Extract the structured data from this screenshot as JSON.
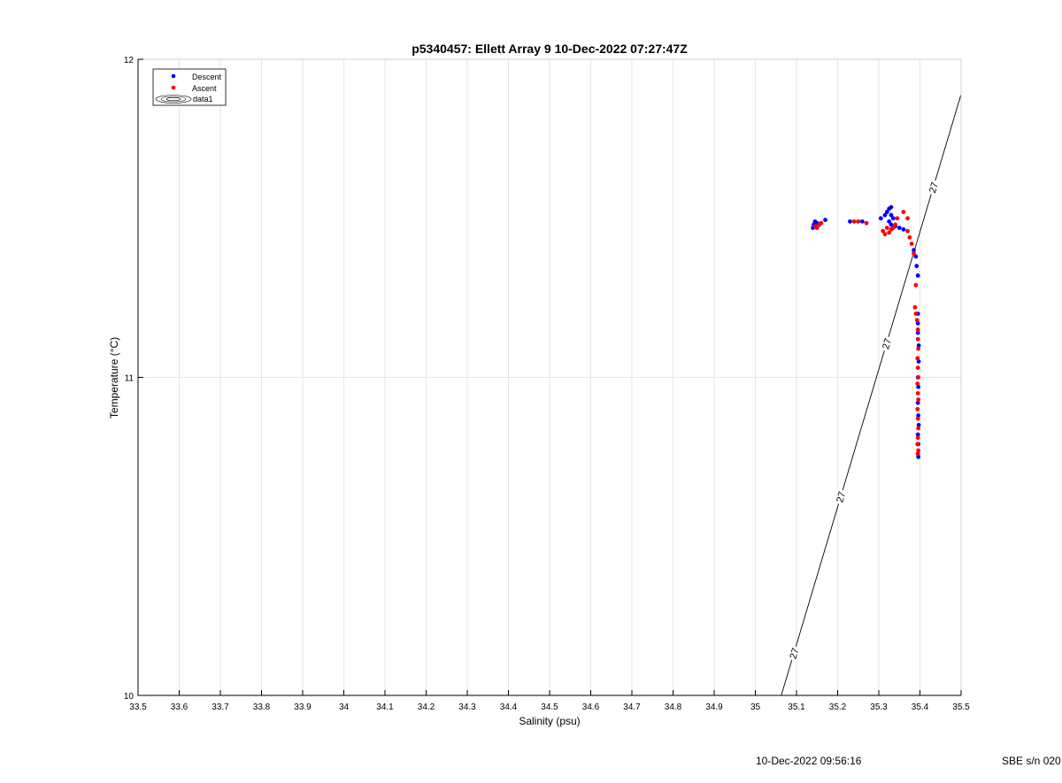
{
  "chart_data": {
    "type": "scatter",
    "title": "p5340457: Ellett Array 9 10-Dec-2022 07:27:47Z",
    "xlabel": "Salinity (psu)",
    "ylabel": "Temperature (°C)",
    "xlim": [
      33.5,
      35.5
    ],
    "ylim": [
      10,
      12
    ],
    "xticks": [
      "33.5",
      "33.6",
      "33.7",
      "33.8",
      "33.9",
      "34",
      "34.1",
      "34.2",
      "34.3",
      "34.4",
      "34.5",
      "34.6",
      "34.7",
      "34.8",
      "34.9",
      "35",
      "35.1",
      "35.2",
      "35.3",
      "35.4",
      "35.5"
    ],
    "yticks": [
      "10",
      "11",
      "12"
    ],
    "grid": true,
    "legend": {
      "placement": "top-left",
      "entries": [
        "Descent",
        "Ascent",
        "data1"
      ]
    },
    "contour": {
      "label": "27",
      "points": [
        [
          35.063,
          10.0
        ],
        [
          35.5,
          11.89
        ]
      ]
    },
    "series": [
      {
        "name": "Descent",
        "color": "#0000ff",
        "points": [
          [
            35.14,
            11.47
          ],
          [
            35.142,
            11.48
          ],
          [
            35.145,
            11.49
          ],
          [
            35.15,
            11.485
          ],
          [
            35.155,
            11.48
          ],
          [
            35.17,
            11.495
          ],
          [
            35.23,
            11.49
          ],
          [
            35.26,
            11.49
          ],
          [
            35.305,
            11.5
          ],
          [
            35.315,
            11.51
          ],
          [
            35.32,
            11.52
          ],
          [
            35.325,
            11.53
          ],
          [
            35.33,
            11.535
          ],
          [
            35.33,
            11.51
          ],
          [
            35.325,
            11.49
          ],
          [
            35.33,
            11.48
          ],
          [
            35.335,
            11.5
          ],
          [
            35.34,
            11.475
          ],
          [
            35.35,
            11.47
          ],
          [
            35.36,
            11.465
          ],
          [
            35.385,
            11.4
          ],
          [
            35.39,
            11.38
          ],
          [
            35.392,
            11.35
          ],
          [
            35.395,
            11.32
          ],
          [
            35.395,
            11.2
          ],
          [
            35.395,
            11.17
          ],
          [
            35.395,
            11.14
          ],
          [
            35.397,
            11.1
          ],
          [
            35.397,
            11.05
          ],
          [
            35.395,
            11.0
          ],
          [
            35.396,
            10.97
          ],
          [
            35.395,
            10.92
          ],
          [
            35.396,
            10.88
          ],
          [
            35.397,
            10.85
          ],
          [
            35.395,
            10.82
          ],
          [
            35.396,
            10.79
          ],
          [
            35.395,
            10.76
          ],
          [
            35.396,
            10.75
          ]
        ]
      },
      {
        "name": "Ascent",
        "color": "#ff0000",
        "points": [
          [
            35.145,
            11.475
          ],
          [
            35.15,
            11.47
          ],
          [
            35.155,
            11.48
          ],
          [
            35.16,
            11.485
          ],
          [
            35.24,
            11.49
          ],
          [
            35.25,
            11.49
          ],
          [
            35.27,
            11.485
          ],
          [
            35.31,
            11.46
          ],
          [
            35.315,
            11.45
          ],
          [
            35.32,
            11.47
          ],
          [
            35.325,
            11.455
          ],
          [
            35.33,
            11.465
          ],
          [
            35.335,
            11.47
          ],
          [
            35.34,
            11.48
          ],
          [
            35.345,
            11.5
          ],
          [
            35.36,
            11.52
          ],
          [
            35.37,
            11.5
          ],
          [
            35.37,
            11.46
          ],
          [
            35.375,
            11.44
          ],
          [
            35.38,
            11.42
          ],
          [
            35.385,
            11.39
          ],
          [
            35.39,
            11.29
          ],
          [
            35.388,
            11.22
          ],
          [
            35.39,
            11.2
          ],
          [
            35.393,
            11.18
          ],
          [
            35.395,
            11.15
          ],
          [
            35.395,
            11.12
          ],
          [
            35.396,
            11.09
          ],
          [
            35.394,
            11.06
          ],
          [
            35.395,
            11.03
          ],
          [
            35.396,
            11.0
          ],
          [
            35.394,
            10.98
          ],
          [
            35.395,
            10.95
          ],
          [
            35.396,
            10.93
          ],
          [
            35.394,
            10.9
          ],
          [
            35.395,
            10.87
          ],
          [
            35.396,
            10.84
          ],
          [
            35.395,
            10.81
          ],
          [
            35.394,
            10.79
          ],
          [
            35.396,
            10.77
          ],
          [
            35.395,
            10.76
          ]
        ]
      }
    ]
  },
  "footer": {
    "timestamp": "10-Dec-2022 09:56:16",
    "serial": "SBE s/n 020"
  }
}
